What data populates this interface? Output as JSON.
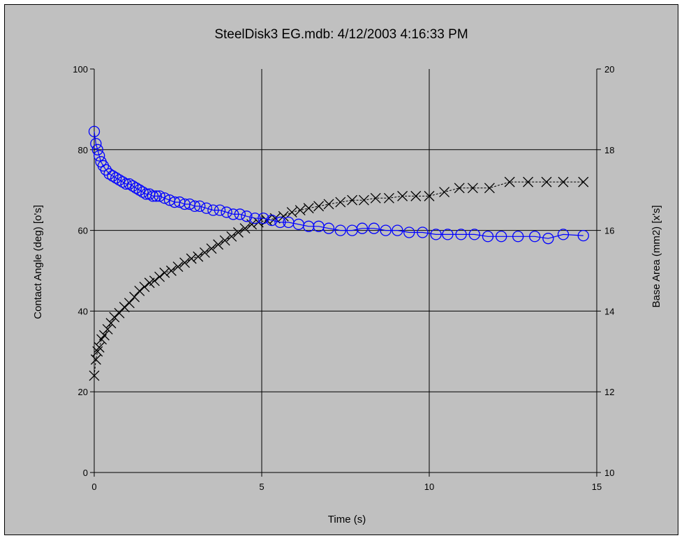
{
  "chart_data": {
    "type": "scatter",
    "title": "SteelDisk3 EG.mdb: 4/12/2003 4:16:33 PM",
    "xlabel": "Time (s)",
    "ylabel_left": "Contact Angle (deg) [o's]",
    "ylabel_right": "Base Area (mm2) [x's]",
    "xlim": [
      0,
      15
    ],
    "ylim_left": [
      0,
      100
    ],
    "ylim_right": [
      10,
      20
    ],
    "x_ticks": [
      "0",
      "5",
      "10",
      "15"
    ],
    "y_ticks_left": [
      "0",
      "20",
      "40",
      "60",
      "80",
      "100"
    ],
    "y_ticks_right": [
      "10",
      "12",
      "14",
      "16",
      "18",
      "20"
    ],
    "grid": true,
    "colors": {
      "contact_angle": "#0000ff",
      "base_area": "#000000",
      "background": "#c0c0c0"
    },
    "series": [
      {
        "axis": "left",
        "marker": "circle",
        "x": [
          0.0,
          0.05,
          0.1,
          0.15,
          0.2,
          0.27,
          0.35,
          0.45,
          0.55,
          0.65,
          0.75,
          0.85,
          0.95,
          1.05,
          1.15,
          1.25,
          1.35,
          1.45,
          1.55,
          1.65,
          1.75,
          1.85,
          1.95,
          2.1,
          2.25,
          2.4,
          2.55,
          2.7,
          2.85,
          3.0,
          3.15,
          3.35,
          3.55,
          3.75,
          3.95,
          4.15,
          4.35,
          4.55,
          4.8,
          5.05,
          5.3,
          5.55,
          5.8,
          6.1,
          6.4,
          6.7,
          7.0,
          7.35,
          7.7,
          8.0,
          8.35,
          8.7,
          9.05,
          9.4,
          9.8,
          10.2,
          10.55,
          10.95,
          11.35,
          11.75,
          12.15,
          12.65,
          13.15,
          13.55,
          14.0,
          14.6
        ],
        "y": [
          84.5,
          81.5,
          80,
          78.5,
          77,
          76,
          75,
          74,
          73.5,
          73,
          72.5,
          72,
          71.5,
          71.5,
          71,
          70.5,
          70,
          69.5,
          69,
          69,
          68.5,
          68.5,
          68.5,
          68,
          67.5,
          67,
          67,
          66.5,
          66.5,
          66,
          66,
          65.5,
          65,
          65,
          64.5,
          64,
          64,
          63.5,
          63,
          63,
          62.5,
          62,
          62,
          61.5,
          61,
          61,
          60.5,
          60,
          60,
          60.5,
          60.5,
          60,
          60,
          59.5,
          59.5,
          59,
          59,
          59,
          59,
          58.5,
          58.5,
          58.5,
          58.5,
          58,
          59,
          58.7
        ]
      },
      {
        "axis": "right",
        "marker": "x",
        "x": [
          0.0,
          0.05,
          0.1,
          0.15,
          0.22,
          0.3,
          0.4,
          0.5,
          0.6,
          0.75,
          0.9,
          1.05,
          1.2,
          1.35,
          1.5,
          1.65,
          1.8,
          1.95,
          2.1,
          2.3,
          2.5,
          2.7,
          2.9,
          3.1,
          3.3,
          3.5,
          3.7,
          3.9,
          4.1,
          4.3,
          4.5,
          4.7,
          4.9,
          5.15,
          5.4,
          5.65,
          5.9,
          6.15,
          6.4,
          6.7,
          7.0,
          7.35,
          7.7,
          8.05,
          8.4,
          8.8,
          9.2,
          9.6,
          10.0,
          10.45,
          10.9,
          11.3,
          11.8,
          12.4,
          12.95,
          13.5,
          14.0,
          14.6
        ],
        "y": [
          12.4,
          12.8,
          13.0,
          13.1,
          13.3,
          13.4,
          13.55,
          13.7,
          13.85,
          13.95,
          14.1,
          14.2,
          14.35,
          14.5,
          14.6,
          14.7,
          14.75,
          14.85,
          14.95,
          15.0,
          15.1,
          15.2,
          15.3,
          15.35,
          15.45,
          15.55,
          15.65,
          15.75,
          15.85,
          15.95,
          16.05,
          16.15,
          16.2,
          16.25,
          16.3,
          16.35,
          16.45,
          16.5,
          16.55,
          16.6,
          16.65,
          16.7,
          16.75,
          16.75,
          16.8,
          16.8,
          16.85,
          16.85,
          16.85,
          16.95,
          17.05,
          17.05,
          17.05,
          17.2,
          17.2,
          17.2,
          17.2,
          17.2
        ]
      }
    ]
  }
}
